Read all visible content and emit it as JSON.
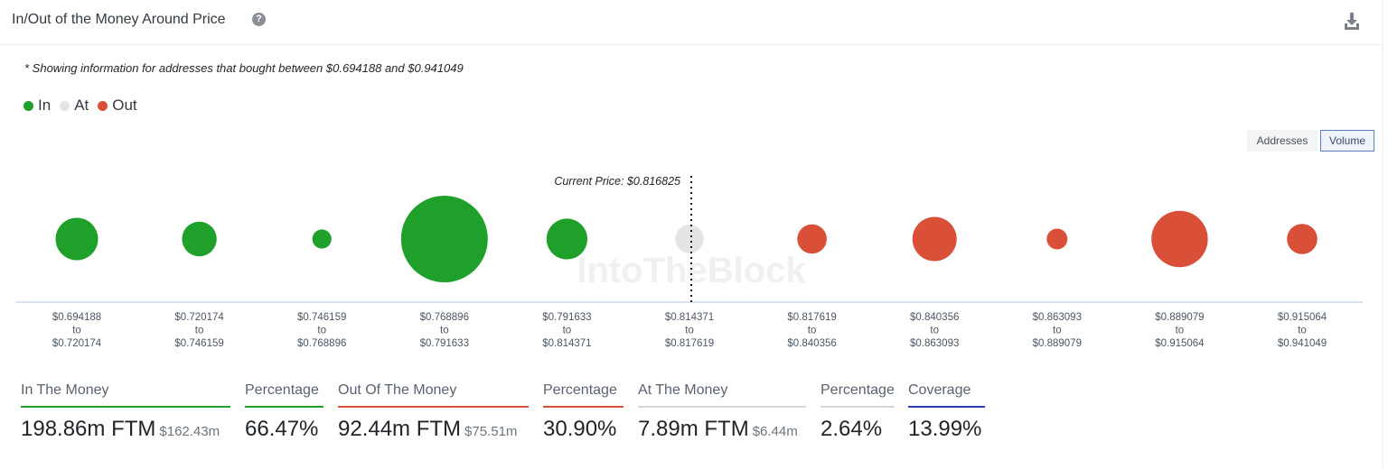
{
  "header": {
    "title": "In/Out of the Money Around Price",
    "help_icon": "question-circle-icon",
    "download_icon": "download-icon"
  },
  "note": "* Showing information for addresses that bought between $0.694188 and $0.941049",
  "legend": [
    {
      "label": "In",
      "color": "#1fa02a"
    },
    {
      "label": "At",
      "color": "#e4e4e4"
    },
    {
      "label": "Out",
      "color": "#d94f38"
    }
  ],
  "toggles": {
    "addresses": "Addresses",
    "volume": "Volume",
    "active": "Volume"
  },
  "chart_data": {
    "type": "scatter",
    "encoding": "bubble size = volume per price range",
    "current_price_label": "Current Price: $0.816825",
    "current_price_after_index": 5,
    "watermark": "IntoTheBlock",
    "ranges": [
      {
        "from": "$0.694188",
        "to": "$0.720174",
        "status": "in",
        "relative_size": 0.49
      },
      {
        "from": "$0.720174",
        "to": "$0.746159",
        "status": "in",
        "relative_size": 0.4
      },
      {
        "from": "$0.746159",
        "to": "$0.768896",
        "status": "in",
        "relative_size": 0.22
      },
      {
        "from": "$0.768896",
        "to": "$0.791633",
        "status": "in",
        "relative_size": 1.0
      },
      {
        "from": "$0.791633",
        "to": "$0.814371",
        "status": "in",
        "relative_size": 0.47
      },
      {
        "from": "$0.814371",
        "to": "$0.817619",
        "status": "at",
        "relative_size": 0.33
      },
      {
        "from": "$0.817619",
        "to": "$0.840356",
        "status": "out",
        "relative_size": 0.34
      },
      {
        "from": "$0.840356",
        "to": "$0.863093",
        "status": "out",
        "relative_size": 0.51
      },
      {
        "from": "$0.863093",
        "to": "$0.889079",
        "status": "out",
        "relative_size": 0.24
      },
      {
        "from": "$0.889079",
        "to": "$0.915064",
        "status": "out",
        "relative_size": 0.65
      },
      {
        "from": "$0.915064",
        "to": "$0.941049",
        "status": "out",
        "relative_size": 0.35
      }
    ],
    "to_word": "to"
  },
  "stats": [
    {
      "label": "In The Money",
      "value": "198.86m FTM",
      "sub": "$162.43m",
      "color": "#1fa02a"
    },
    {
      "label": "Percentage",
      "value": "66.47%",
      "sub": "",
      "color": "#1fa02a"
    },
    {
      "label": "Out Of The Money",
      "value": "92.44m FTM",
      "sub": "$75.51m",
      "color": "#d94f38"
    },
    {
      "label": "Percentage",
      "value": "30.90%",
      "sub": "",
      "color": "#d94f38"
    },
    {
      "label": "At The Money",
      "value": "7.89m FTM",
      "sub": "$6.44m",
      "color": "#d8d8d8"
    },
    {
      "label": "Percentage",
      "value": "2.64%",
      "sub": "",
      "color": "#d8d8d8"
    },
    {
      "label": "Coverage",
      "value": "13.99%",
      "sub": "",
      "color": "#2a3fb0"
    }
  ]
}
